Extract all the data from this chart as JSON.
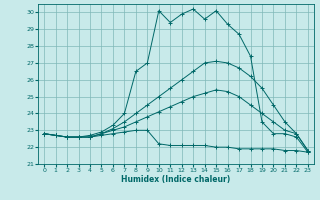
{
  "xlabel": "Humidex (Indice chaleur)",
  "ylabel": "",
  "bg_color": "#c8eaea",
  "grid_color": "#80b8b8",
  "line_color": "#006868",
  "ylim": [
    21,
    30.5
  ],
  "xlim": [
    -0.5,
    23.5
  ],
  "yticks": [
    21,
    22,
    23,
    24,
    25,
    26,
    27,
    28,
    29,
    30
  ],
  "xticks": [
    0,
    1,
    2,
    3,
    4,
    5,
    6,
    7,
    8,
    9,
    10,
    11,
    12,
    13,
    14,
    15,
    16,
    17,
    18,
    19,
    20,
    21,
    22,
    23
  ],
  "series": [
    [
      22.8,
      22.7,
      22.6,
      22.6,
      22.6,
      22.7,
      22.8,
      22.9,
      23.0,
      23.0,
      22.2,
      22.1,
      22.1,
      22.1,
      22.1,
      22.0,
      22.0,
      21.9,
      21.9,
      21.9,
      21.9,
      21.8,
      21.8,
      21.7
    ],
    [
      22.8,
      22.7,
      22.6,
      22.6,
      22.6,
      22.8,
      23.0,
      23.2,
      23.5,
      23.8,
      24.1,
      24.4,
      24.7,
      25.0,
      25.2,
      25.4,
      25.3,
      25.0,
      24.5,
      24.0,
      23.5,
      23.0,
      22.8,
      21.8
    ],
    [
      22.8,
      22.7,
      22.6,
      22.6,
      22.6,
      22.8,
      23.1,
      23.5,
      24.0,
      24.5,
      25.0,
      25.5,
      26.0,
      26.5,
      27.0,
      27.1,
      27.0,
      26.7,
      26.2,
      25.5,
      24.5,
      23.5,
      22.8,
      21.8
    ],
    [
      22.8,
      22.7,
      22.6,
      22.6,
      22.7,
      22.9,
      23.3,
      24.0,
      26.5,
      27.0,
      30.1,
      29.4,
      29.9,
      30.2,
      29.6,
      30.1,
      29.3,
      28.7,
      27.4,
      23.5,
      22.8,
      22.8,
      22.6,
      21.7
    ]
  ]
}
